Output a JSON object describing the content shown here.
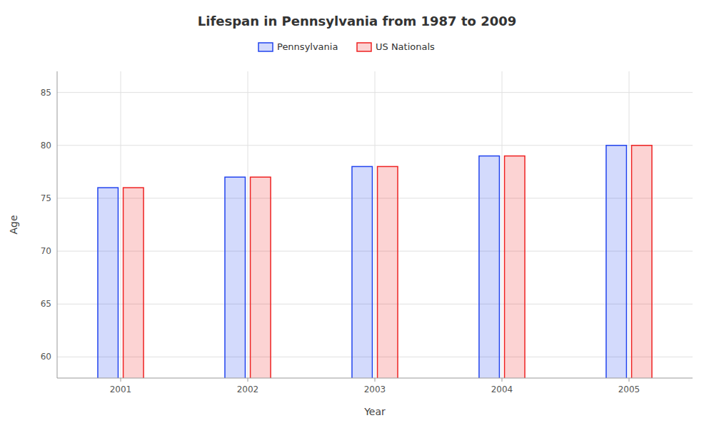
{
  "chart_data": {
    "type": "bar",
    "title": "Lifespan in Pennsylvania from 1987 to 2009",
    "x_label": "Year",
    "y_label": "Age",
    "categories": [
      "2001",
      "2002",
      "2003",
      "2004",
      "2005"
    ],
    "series": [
      {
        "name": "Pennsylvania",
        "color": "#2244ee",
        "values": [
          76,
          77,
          78,
          79,
          80
        ]
      },
      {
        "name": "US Nationals",
        "color": "#ee2222",
        "values": [
          76,
          77,
          78,
          79,
          80
        ]
      }
    ],
    "ylim": [
      58,
      87
    ],
    "yticks": [
      60,
      65,
      70,
      75,
      80,
      85
    ],
    "grid": true,
    "legend": "top"
  }
}
